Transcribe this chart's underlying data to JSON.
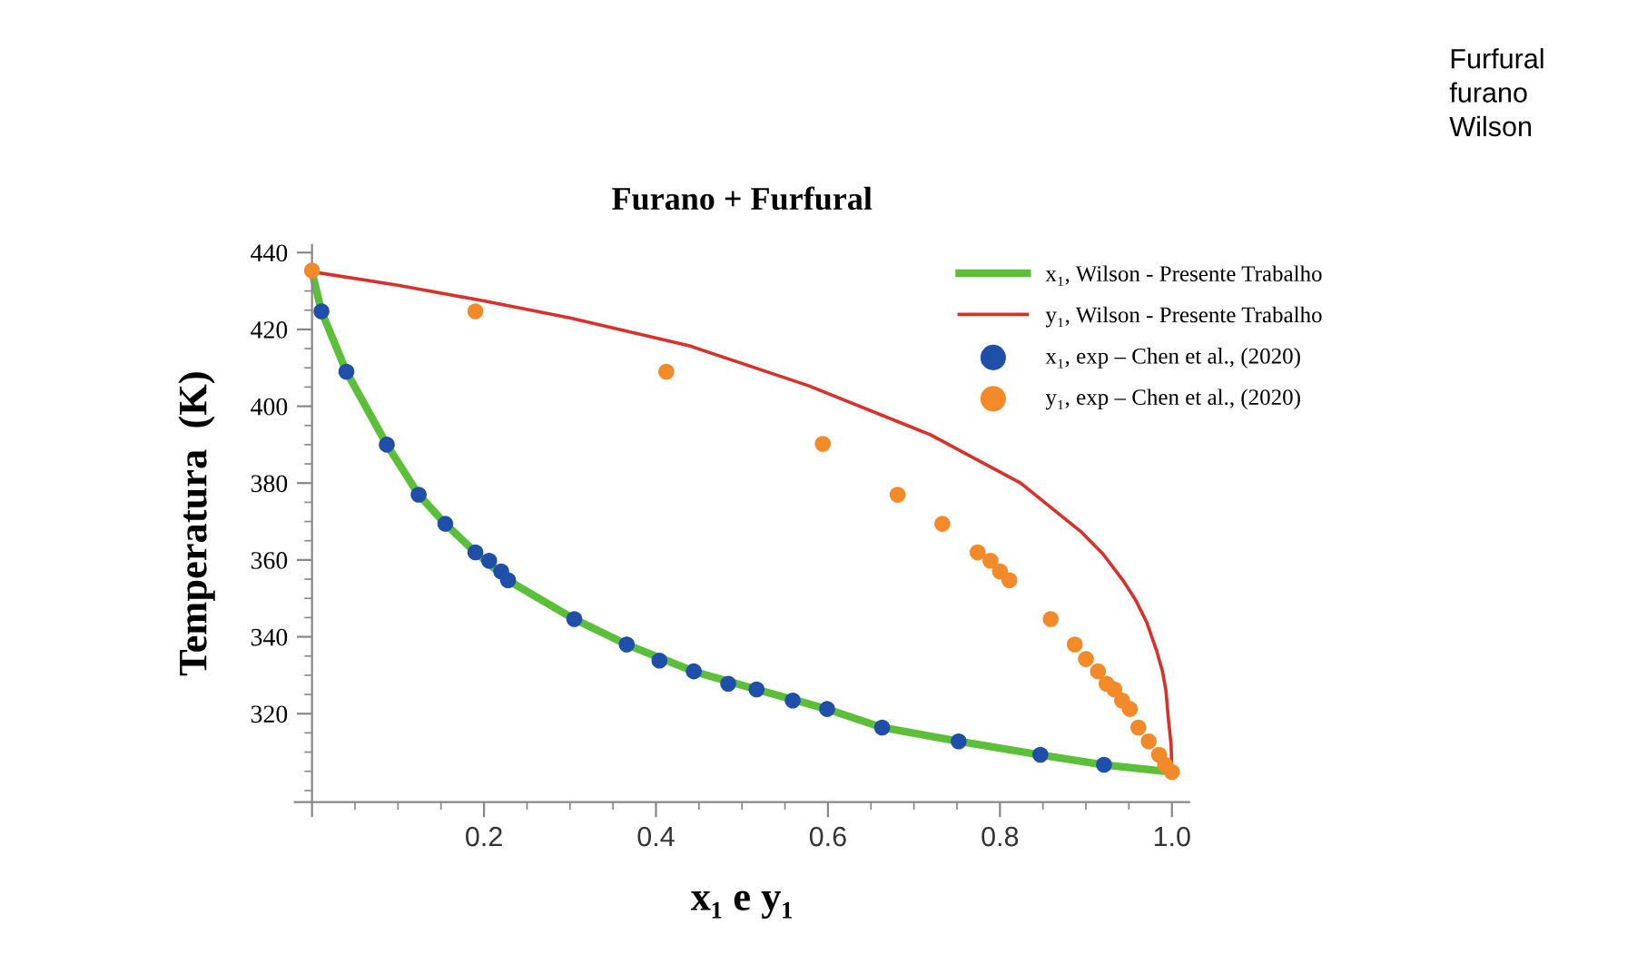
{
  "chart_data": {
    "type": "scatter",
    "title": "Furano + Furfural",
    "xlabel": "x₁ e y₁",
    "ylabel": "Temperatura  (K)",
    "annotations": [
      "Furfural\nfurano\nWilson"
    ],
    "xlim": [
      -0.02,
      1.02
    ],
    "ylim": [
      297,
      442
    ],
    "xticks": [
      {
        "value": 0,
        "label": null
      },
      0.2,
      0.4,
      0.6,
      0.8,
      {
        "value": 1.0,
        "label": "1.0"
      }
    ],
    "yticks": [
      320,
      340,
      360,
      380,
      400,
      420,
      440
    ],
    "grid": false,
    "legend": "top right",
    "series": [
      {
        "name": "x₁, Wilson - Presente Trabalho",
        "type": "line",
        "marker": "none",
        "color": "#5cbf3a",
        "line_style": "solid",
        "x": [
          0,
          0.011,
          0.04,
          0.087,
          0.124,
          0.155,
          0.19,
          0.228,
          0.305,
          0.366,
          0.444,
          0.517,
          0.599,
          0.663,
          0.752,
          0.847,
          0.921,
          1.0
        ],
        "values": [
          435,
          424.7,
          409,
          390,
          377,
          369.4,
          362,
          354.7,
          344.6,
          338,
          331,
          326.3,
          321.2,
          316.4,
          312.8,
          309.3,
          306.7,
          304.8
        ]
      },
      {
        "name": "y₁, Wilson - Presente Trabalho",
        "type": "line",
        "marker": "none",
        "color": "#d9302a",
        "line_style": "solid",
        "x": [
          0,
          0.1,
          0.2,
          0.3,
          0.438,
          0.578,
          0.719,
          0.824,
          0.894,
          0.92,
          0.943,
          0.958,
          0.971,
          0.982,
          0.989,
          0.993,
          0.996,
          0.999,
          1.0
        ],
        "values": [
          435,
          431.5,
          427.4,
          423,
          415.8,
          405.3,
          392.6,
          380,
          367.4,
          361.5,
          354.7,
          349.5,
          343.6,
          336.5,
          331,
          326,
          318.3,
          312,
          304.8
        ]
      },
      {
        "name": "x₁, exp – Chen et al., (2020)",
        "marker": "circle",
        "color": "#1f4fa8",
        "x": [
          0.011,
          0.04,
          0.087,
          0.124,
          0.155,
          0.19,
          0.206,
          0.22,
          0.228,
          0.305,
          0.366,
          0.404,
          0.444,
          0.484,
          0.517,
          0.559,
          0.599,
          0.663,
          0.752,
          0.847,
          0.921
        ],
        "values": [
          424.7,
          409,
          390,
          377,
          369.4,
          362,
          359.8,
          357,
          354.7,
          344.6,
          338,
          333.8,
          331,
          327.8,
          326.3,
          323.4,
          321.2,
          316.4,
          312.8,
          309.3,
          306.7
        ]
      },
      {
        "name": "y₁, exp – Chen et al., (2020)",
        "marker": "circle",
        "color": "#f28a2a",
        "x": [
          0,
          0.19,
          0.412,
          0.594,
          0.681,
          0.733,
          0.774,
          0.789,
          0.8,
          0.811,
          0.859,
          0.887,
          0.9,
          0.914,
          0.924,
          0.933,
          0.942,
          0.951,
          0.961,
          0.973,
          0.985,
          0.992,
          1.0
        ],
        "values": [
          435.3,
          424.7,
          409,
          390.2,
          377,
          369.4,
          362,
          359.8,
          357,
          354.7,
          344.6,
          338,
          334.2,
          331,
          327.8,
          326.3,
          323.4,
          321.2,
          316.4,
          312.8,
          309.3,
          306.7,
          304.8
        ]
      }
    ]
  }
}
